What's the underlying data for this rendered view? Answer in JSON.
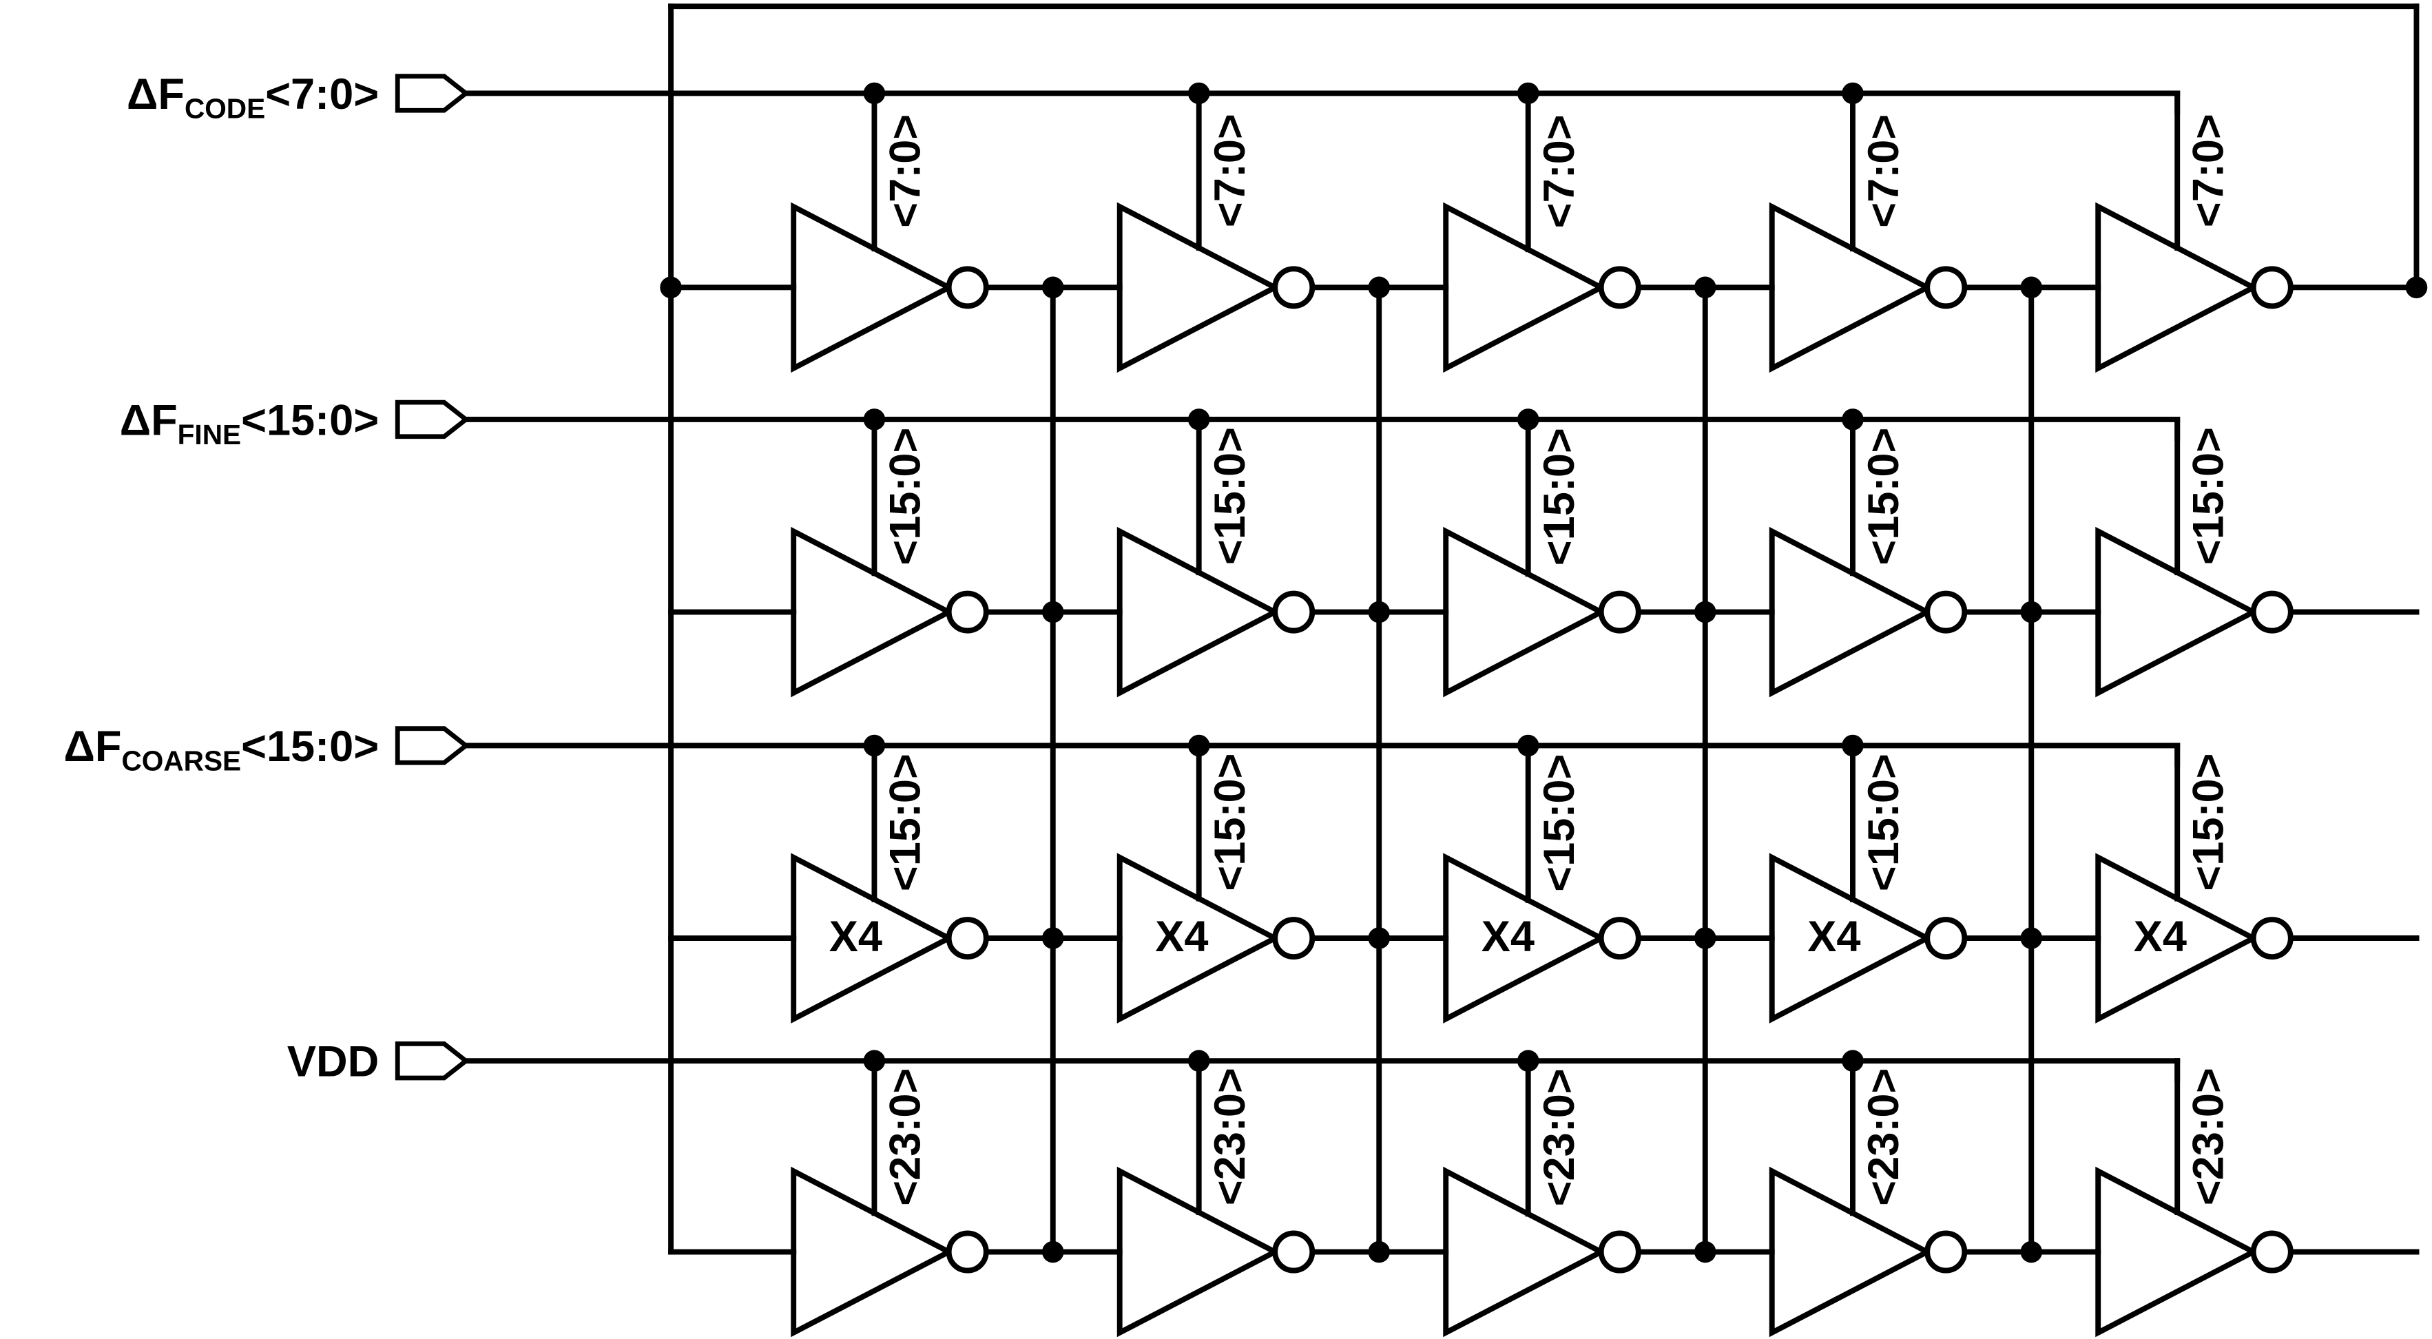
{
  "ports": [
    {
      "main": "ΔF",
      "sub": "CODE",
      "bus": "<7:0>"
    },
    {
      "main": "ΔF",
      "sub": "FINE",
      "bus": "<15:0>"
    },
    {
      "main": "ΔF",
      "sub": "COARSE",
      "bus": "<15:0>"
    },
    {
      "main": "VDD",
      "sub": "",
      "bus": ""
    }
  ],
  "rows": [
    {
      "control_bits": "<7:0>",
      "gain": ""
    },
    {
      "control_bits": "<15:0>",
      "gain": ""
    },
    {
      "control_bits": "<15:0>",
      "gain": "X4"
    },
    {
      "control_bits": "<23:0>",
      "gain": ""
    }
  ],
  "stages_per_row": 5,
  "colors": {
    "wire": "#000000",
    "background": "#ffffff"
  }
}
